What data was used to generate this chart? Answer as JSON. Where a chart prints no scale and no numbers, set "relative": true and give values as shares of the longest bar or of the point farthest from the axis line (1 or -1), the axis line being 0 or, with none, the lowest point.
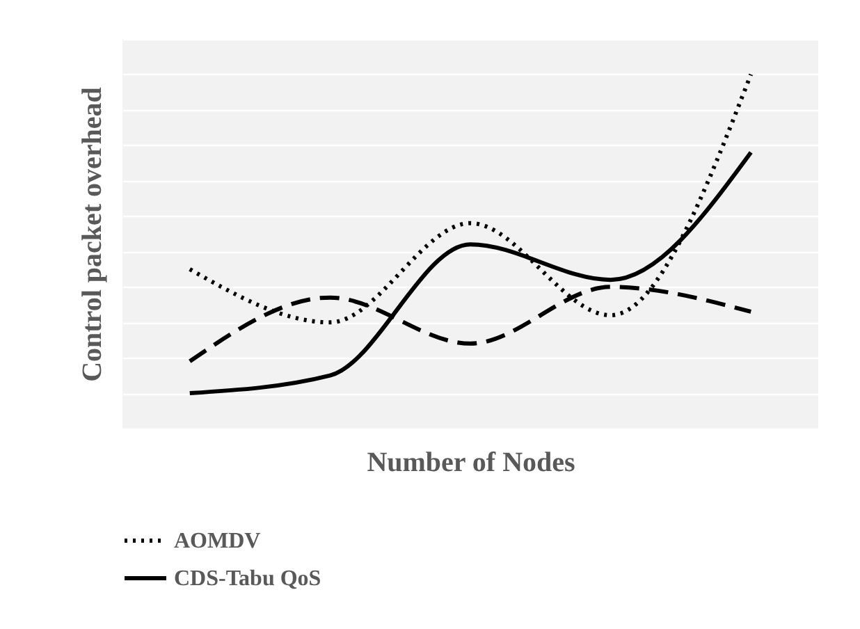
{
  "chart_data": {
    "type": "line",
    "xlabel": "Number of Nodes",
    "ylabel": "Control packet overhead",
    "categories": [
      null,
      null,
      null,
      null,
      null
    ],
    "relative": true,
    "grid": "y",
    "tick_labels": false,
    "legend": "bottom left",
    "series": [
      {
        "name": "AOMDV",
        "color": "#000000",
        "line_style": "dotted",
        "values": [
          0.45,
          0.3,
          0.58,
          0.32,
          1
        ]
      },
      {
        "name": "CDS-Tabu QoS",
        "color": "#000000",
        "line_style": "solid",
        "values": [
          0.1,
          0.15,
          0.52,
          0.42,
          0.78
        ]
      },
      {
        "color": "#000000",
        "line_style": "dashed",
        "values": [
          0.19,
          0.37,
          0.24,
          0.4,
          0.33
        ]
      }
    ]
  }
}
